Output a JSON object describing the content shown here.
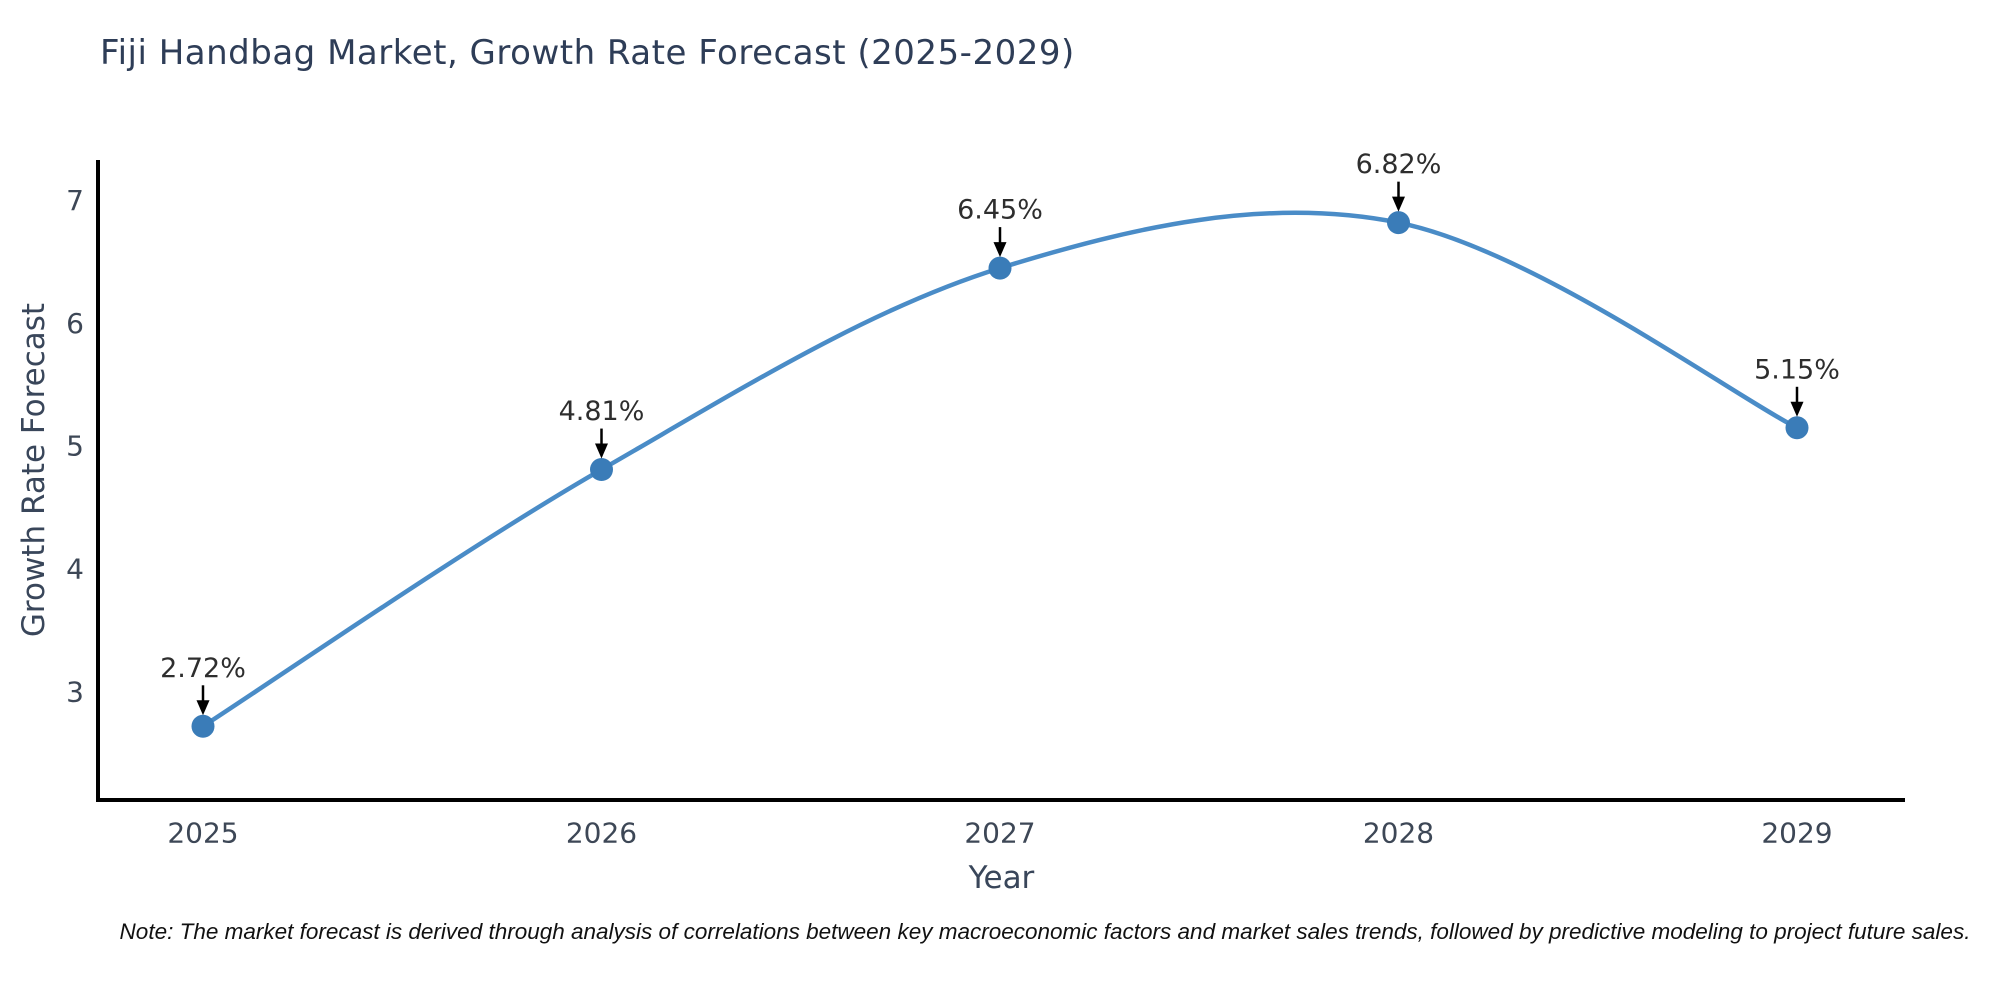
{
  "title": "Fiji Handbag Market, Growth Rate Forecast (2025-2029)",
  "note": "Note: The market forecast is derived through analysis of correlations between key macroeconomic factors and market sales trends, followed by predictive modeling to project future sales.",
  "chart_data": {
    "type": "line",
    "x": [
      "2025",
      "2026",
      "2027",
      "2028",
      "2029"
    ],
    "series": [
      {
        "name": "Growth Rate Forecast",
        "values": [
          2.72,
          4.81,
          6.45,
          6.82,
          5.15
        ]
      }
    ],
    "point_labels": [
      "2.72%",
      "4.81%",
      "6.45%",
      "6.82%",
      "5.15%"
    ],
    "title": "Fiji Handbag Market, Growth Rate Forecast (2025-2029)",
    "xlabel": "Year",
    "ylabel": "Growth Rate Forecast",
    "yticks": [
      "3",
      "4",
      "5",
      "6",
      "7"
    ],
    "ylim": [
      2.12,
      7.33
    ],
    "grid": false,
    "legend_position": "none",
    "smooth": true,
    "colors": {
      "line": "#4a8cc7",
      "marker": "#3a7cb8",
      "arrow": "#000000",
      "annotation_text": "#2e2e2e",
      "axis_line": "#000000",
      "tick_text": "#3d4756",
      "axis_title_text": "#39465a",
      "title_text": "#2e3d57",
      "note_text": "#111111",
      "background": "#ffffff"
    }
  }
}
